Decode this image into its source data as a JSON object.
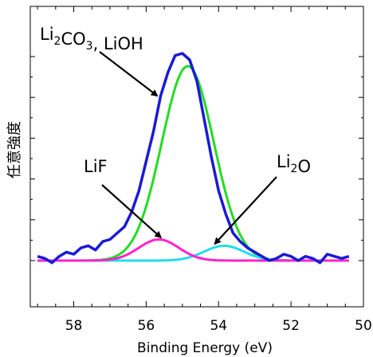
{
  "chart_data": {
    "type": "line",
    "xlabel": "Binding Energy (eV)",
    "ylabel": "任意強度",
    "xlim": [
      59.2,
      50
    ],
    "x_reversed": true,
    "ylim": [
      0,
      1.05
    ],
    "x_ticks": [
      58,
      56,
      54,
      52,
      50
    ],
    "x_tick_labels": [
      "58",
      "56",
      "54",
      "52",
      "50"
    ],
    "y_ticks_labeled": false,
    "grid": false,
    "legend": "none",
    "series": [
      {
        "color": "#1a1ad6",
        "x": [
          59.0,
          58.8,
          58.6,
          58.4,
          58.2,
          58.0,
          57.8,
          57.6,
          57.4,
          57.2,
          57.0,
          56.8,
          56.6,
          56.4,
          56.2,
          56.0,
          55.8,
          55.6,
          55.4,
          55.2,
          55.0,
          54.8,
          54.6,
          54.4,
          54.2,
          54.0,
          53.8,
          53.6,
          53.4,
          53.2,
          53.0,
          52.8,
          52.6,
          52.4,
          52.2,
          52.0,
          51.8,
          51.6,
          51.4,
          51.2,
          51.0,
          50.8,
          50.6,
          50.4
        ],
        "y": [
          0.02,
          0.01,
          -0.01,
          0.02,
          0.04,
          0.03,
          0.06,
          0.07,
          0.05,
          0.09,
          0.1,
          0.13,
          0.16,
          0.23,
          0.33,
          0.47,
          0.61,
          0.78,
          0.89,
          0.97,
          0.98,
          0.95,
          0.85,
          0.67,
          0.49,
          0.33,
          0.22,
          0.13,
          0.09,
          0.06,
          0.04,
          0.02,
          0.0,
          0.01,
          0.03,
          0.02,
          0.0,
          0.02,
          0.01,
          -0.01,
          0.03,
          0.02,
          0.01,
          0.02
        ]
      },
      {
        "color": "#22dd22",
        "peak": {
          "center": 54.85,
          "height": 0.92,
          "sigma": 0.72
        }
      },
      {
        "color": "#ff22cc",
        "peak": {
          "center": 55.65,
          "height": 0.1,
          "sigma": 0.55
        }
      },
      {
        "color": "#22ddee",
        "peak": {
          "center": 53.85,
          "height": 0.07,
          "sigma": 0.55
        }
      }
    ],
    "annotations": [
      {
        "text": "Li2CO3, LiOH",
        "parts": [
          {
            "t": "Li"
          },
          {
            "t": "2",
            "sub": true
          },
          {
            "t": "CO"
          },
          {
            "t": "3",
            "sub": true
          },
          {
            "t": ", LiOH"
          }
        ],
        "arrow_to": [
          55.7,
          0.78
        ]
      },
      {
        "text": "LiF",
        "parts": [
          {
            "t": "LiF"
          }
        ],
        "arrow_to": [
          55.6,
          0.11
        ]
      },
      {
        "text": "Li2O",
        "parts": [
          {
            "t": "Li"
          },
          {
            "t": "2",
            "sub": true
          },
          {
            "t": "O"
          }
        ],
        "arrow_to": [
          54.1,
          0.08
        ]
      }
    ]
  }
}
